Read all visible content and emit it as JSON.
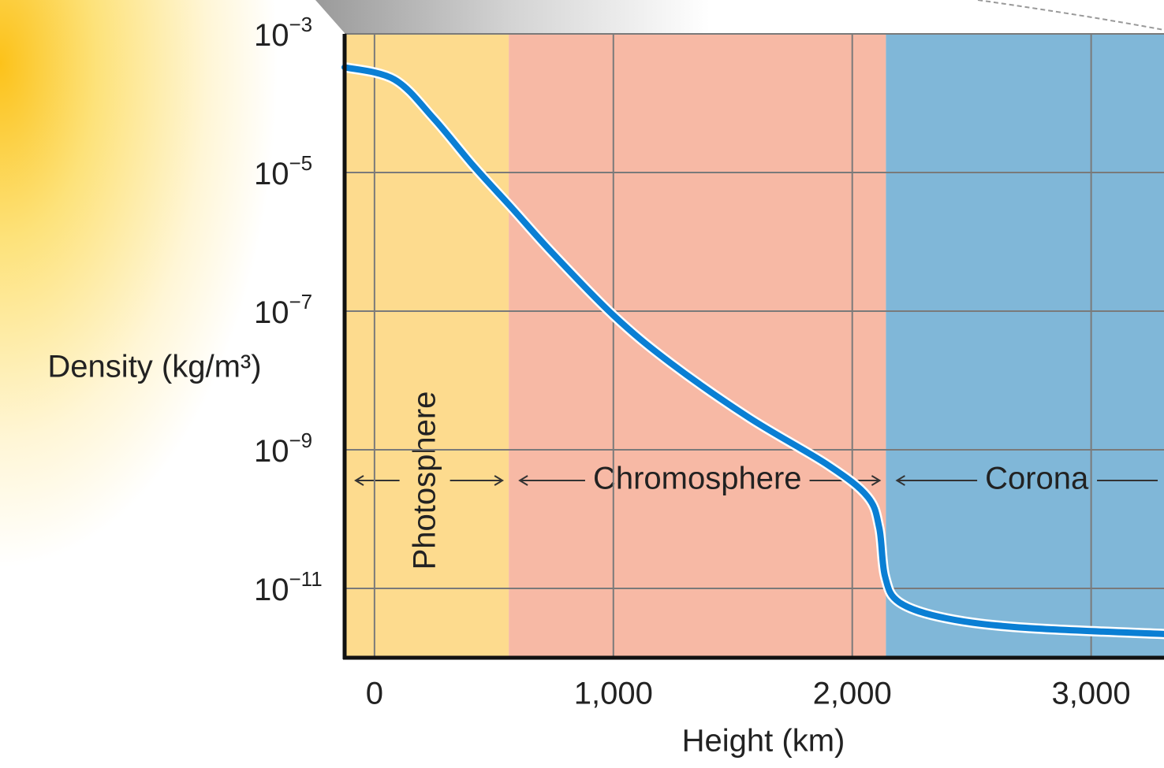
{
  "chart_data": {
    "type": "line",
    "xlabel": "Height (km)",
    "ylabel": "Density (kg/m³)",
    "xlim": [
      -125,
      3305
    ],
    "ylim": [
      1e-12,
      0.001
    ],
    "yscale": "log",
    "grid": true,
    "xticks": [
      0,
      {
        "value": 1000,
        "label": "1,000"
      },
      {
        "value": 2000,
        "label": "2,000"
      },
      {
        "value": 3000,
        "label": "3,000"
      }
    ],
    "yticks": [
      {
        "value": 0.001,
        "label": "10",
        "exponent": "−3"
      },
      {
        "value": 1e-05,
        "label": "10",
        "exponent": "−5"
      },
      {
        "value": 1e-07,
        "label": "10",
        "exponent": "−7"
      },
      {
        "value": 1e-09,
        "label": "10",
        "exponent": "−9"
      },
      {
        "value": 1e-11,
        "label": "10",
        "exponent": "−11"
      }
    ],
    "regions": [
      {
        "name": "Photosphere",
        "start": -125,
        "end": 562,
        "color": "#fddb8e",
        "vertical": true
      },
      {
        "name": "Chromosphere",
        "start": 562,
        "end": 2141,
        "color": "#f7b9a5"
      },
      {
        "name": "Corona",
        "start": 2141,
        "end": 3305,
        "color": "#80b7d8"
      }
    ],
    "series": [
      {
        "color": "#0a7fd4",
        "x": [
          -125,
          83,
          248,
          413,
          578,
          743,
          1000,
          1238,
          1568,
          1899,
          2064,
          2113,
          2137,
          2197,
          2395,
          2725,
          3305
        ],
        "values": [
          0.00033,
          0.00022,
          6e-05,
          1.26e-05,
          3e-06,
          7e-07,
          8.7e-08,
          1.8e-08,
          2.9e-09,
          6e-10,
          2.1e-10,
          7.5e-11,
          1.5e-11,
          6.3e-12,
          3.7e-12,
          2.7e-12,
          2.2e-12
        ]
      }
    ]
  }
}
